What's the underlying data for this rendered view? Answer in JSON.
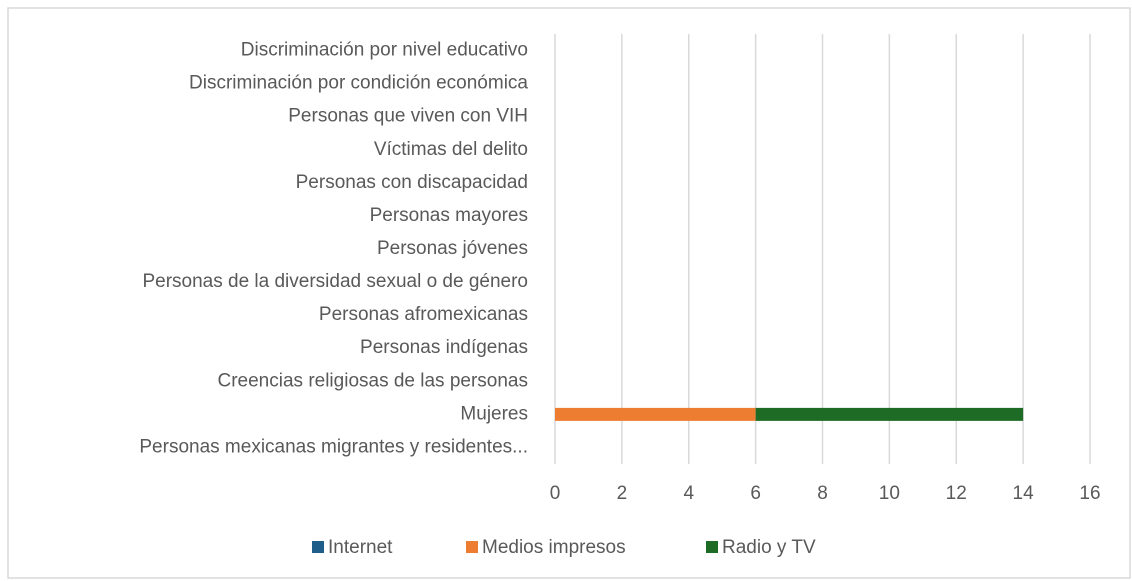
{
  "chart_data": {
    "type": "stacked-bar-horizontal",
    "categories": [
      "Discriminación por nivel educativo",
      "Discriminación por condición económica",
      "Personas que viven con VIH",
      "Víctimas del delito",
      "Personas con discapacidad",
      "Personas mayores",
      "Personas jóvenes",
      "Personas de la diversidad sexual o de género",
      "Personas afromexicanas",
      "Personas indígenas",
      "Creencias religiosas de las personas",
      "Mujeres",
      "Personas mexicanas migrantes y residentes..."
    ],
    "series": [
      {
        "name": "Internet",
        "color": "#1f5e8a",
        "values": [
          0,
          0,
          0,
          0,
          0,
          0,
          0,
          0,
          0,
          0,
          0,
          0,
          0
        ]
      },
      {
        "name": "Medios impresos",
        "color": "#ed7d31",
        "values": [
          0,
          0,
          0,
          0,
          0,
          0,
          0,
          0,
          0,
          0,
          0,
          6,
          0
        ]
      },
      {
        "name": "Radio y TV",
        "color": "#1e6b25",
        "values": [
          0,
          0,
          0,
          0,
          0,
          0,
          0,
          0,
          0,
          0,
          0,
          8,
          0
        ]
      }
    ],
    "xlim": [
      0,
      16
    ],
    "xticks": [
      0,
      2,
      4,
      6,
      8,
      10,
      12,
      14,
      16
    ],
    "grid": true,
    "legend": "bottom"
  }
}
